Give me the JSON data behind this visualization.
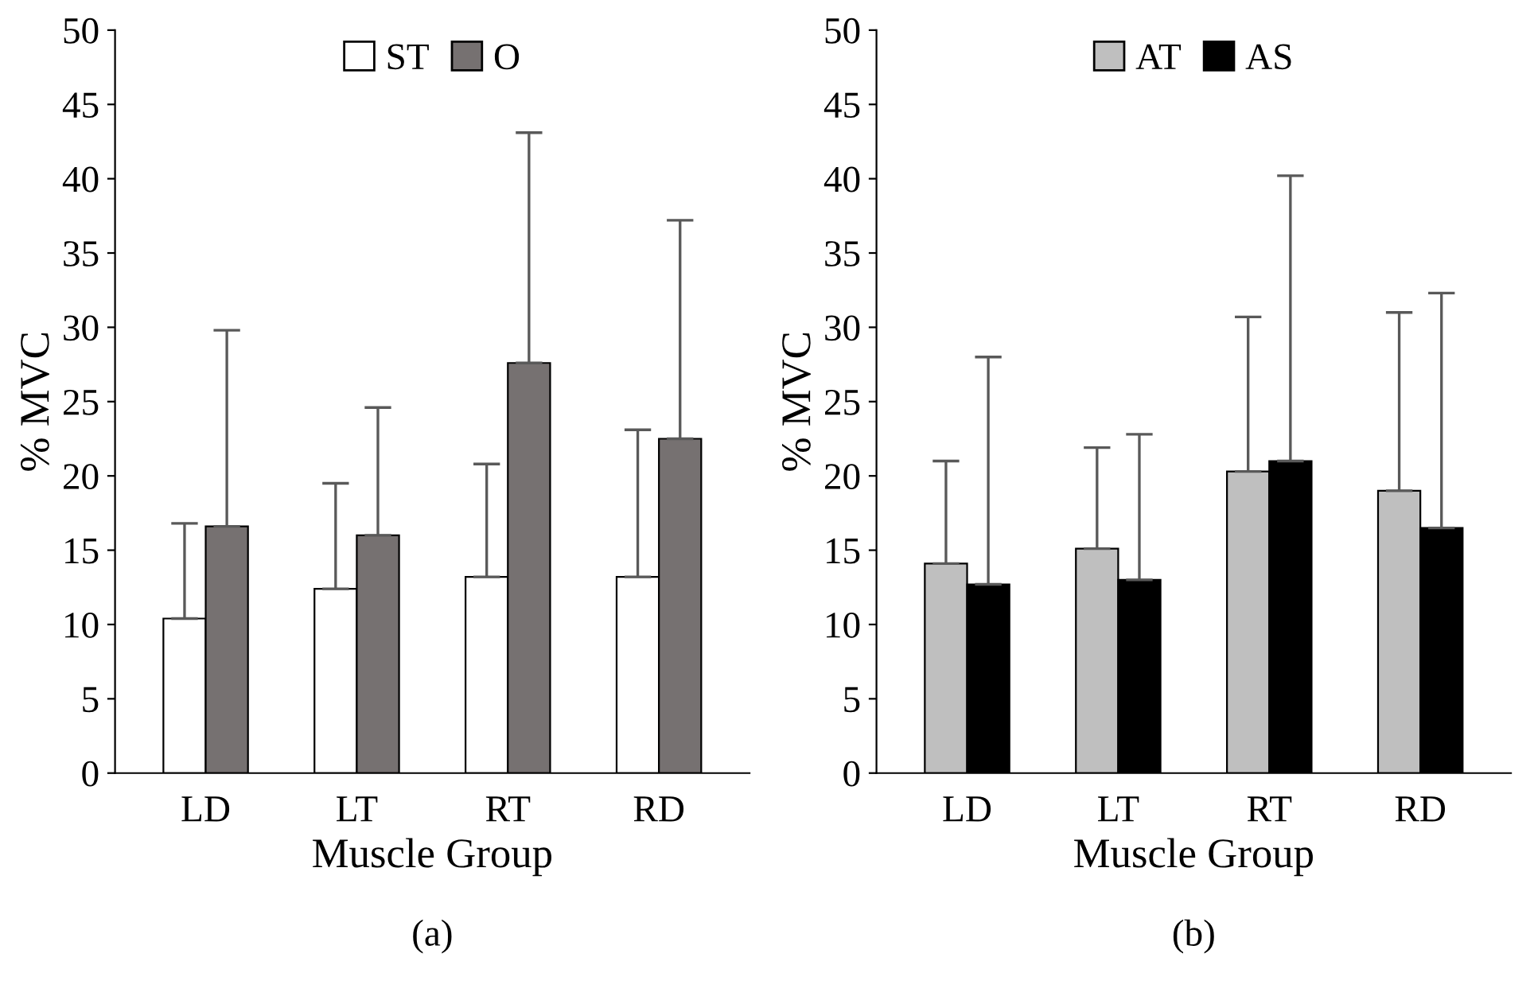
{
  "chart_data": [
    {
      "type": "bar",
      "title": "(a)",
      "xlabel": "Muscle Group",
      "ylabel": "% MVC",
      "categories": [
        "LD",
        "LT",
        "RT",
        "RD"
      ],
      "ylim": [
        0,
        50
      ],
      "yticks": [
        0,
        5,
        10,
        15,
        20,
        25,
        30,
        35,
        40,
        45,
        50
      ],
      "grid": false,
      "legend": "top",
      "series": [
        {
          "name": "ST",
          "color": "#ffffff",
          "values": [
            10.4,
            12.4,
            13.2,
            13.2
          ],
          "errors": [
            [
              10.4,
              16.8
            ],
            [
              12.4,
              19.5
            ],
            [
              13.2,
              20.8
            ],
            [
              13.2,
              23.1
            ]
          ]
        },
        {
          "name": "O",
          "color": "#767171",
          "values": [
            16.6,
            16.0,
            27.6,
            22.5
          ],
          "errors": [
            [
              16.6,
              29.8
            ],
            [
              16.0,
              24.6
            ],
            [
              27.6,
              43.1
            ],
            [
              22.5,
              37.2
            ]
          ]
        }
      ]
    },
    {
      "type": "bar",
      "title": "(b)",
      "xlabel": "Muscle Group",
      "ylabel": "% MVC",
      "categories": [
        "LD",
        "LT",
        "RT",
        "RD"
      ],
      "ylim": [
        0,
        50
      ],
      "yticks": [
        0,
        5,
        10,
        15,
        20,
        25,
        30,
        35,
        40,
        45,
        50
      ],
      "grid": false,
      "legend": "top",
      "series": [
        {
          "name": "AT",
          "color": "#bfbfbf",
          "values": [
            14.1,
            15.1,
            20.3,
            19.0
          ],
          "errors": [
            [
              14.1,
              21.0
            ],
            [
              15.1,
              21.9
            ],
            [
              20.3,
              30.7
            ],
            [
              19.0,
              31.0
            ]
          ]
        },
        {
          "name": "AS",
          "color": "#000000",
          "values": [
            12.7,
            13.0,
            21.0,
            16.5
          ],
          "errors": [
            [
              12.7,
              28.0
            ],
            [
              13.0,
              22.8
            ],
            [
              21.0,
              40.2
            ],
            [
              16.5,
              32.3
            ]
          ]
        }
      ]
    }
  ]
}
